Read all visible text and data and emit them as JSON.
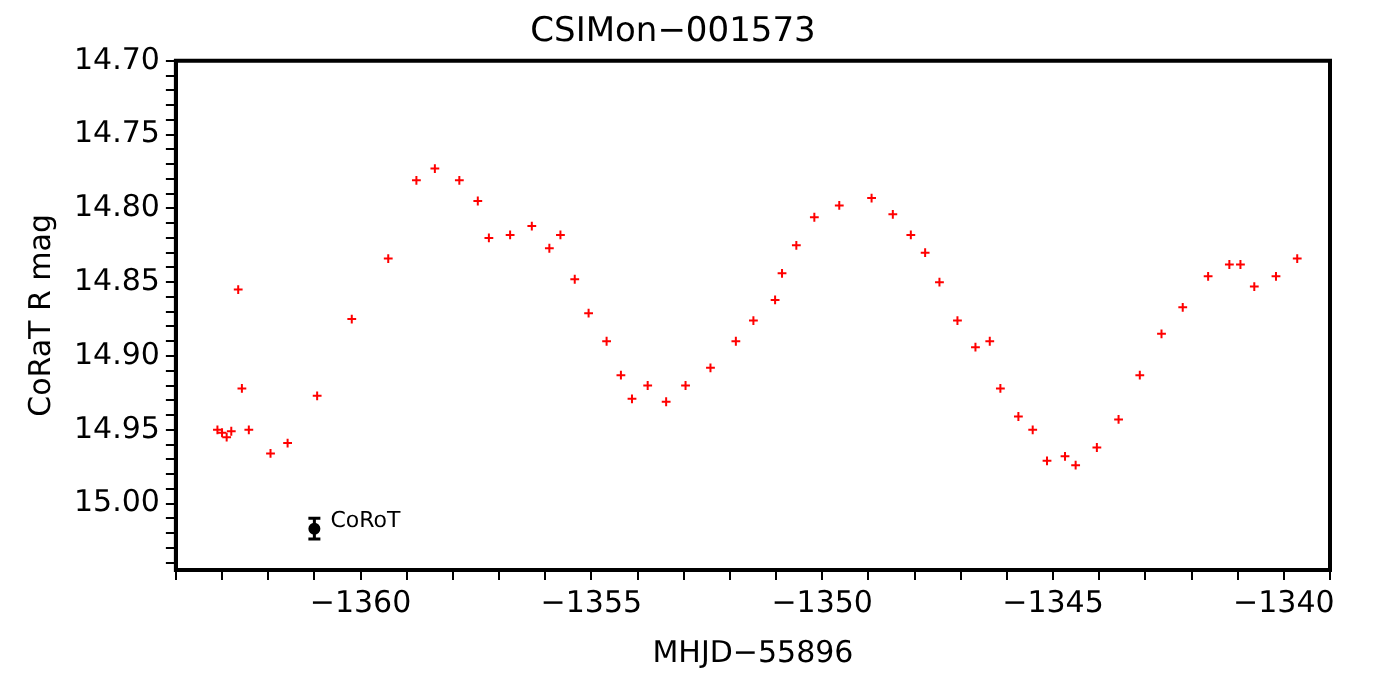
{
  "chart_data": {
    "type": "scatter",
    "title": "CSIMon−001573",
    "xlabel": "MHJD−55896",
    "ylabel": "CoRaT R mag",
    "grid": false,
    "legend": false,
    "marker": "cross",
    "xlim": [
      -1364,
      -1339
    ],
    "ylim": [
      15.045,
      14.7
    ],
    "xticks": [
      {
        "value": -1364,
        "label": null
      },
      {
        "value": -1363,
        "label": null
      },
      {
        "value": -1362,
        "label": null
      },
      {
        "value": -1361,
        "label": null
      },
      {
        "value": -1360,
        "label": "−1360"
      },
      {
        "value": -1359,
        "label": null
      },
      {
        "value": -1358,
        "label": null
      },
      {
        "value": -1357,
        "label": null
      },
      {
        "value": -1356,
        "label": null
      },
      {
        "value": -1355,
        "label": "−1355"
      },
      {
        "value": -1354,
        "label": null
      },
      {
        "value": -1353,
        "label": null
      },
      {
        "value": -1352,
        "label": null
      },
      {
        "value": -1351,
        "label": null
      },
      {
        "value": -1350,
        "label": "−1350"
      },
      {
        "value": -1349,
        "label": null
      },
      {
        "value": -1348,
        "label": null
      },
      {
        "value": -1347,
        "label": null
      },
      {
        "value": -1346,
        "label": null
      },
      {
        "value": -1345,
        "label": "−1345"
      },
      {
        "value": -1344,
        "label": null
      },
      {
        "value": -1343,
        "label": null
      },
      {
        "value": -1342,
        "label": null
      },
      {
        "value": -1341,
        "label": null
      },
      {
        "value": -1340,
        "label": "−1340"
      },
      {
        "value": -1339,
        "label": null
      }
    ],
    "yticks": [
      {
        "value": 14.7,
        "label": "14.70"
      },
      {
        "value": 14.71,
        "label": null
      },
      {
        "value": 14.72,
        "label": null
      },
      {
        "value": 14.73,
        "label": null
      },
      {
        "value": 14.74,
        "label": null
      },
      {
        "value": 14.75,
        "label": "14.75"
      },
      {
        "value": 14.76,
        "label": null
      },
      {
        "value": 14.77,
        "label": null
      },
      {
        "value": 14.78,
        "label": null
      },
      {
        "value": 14.79,
        "label": null
      },
      {
        "value": 14.8,
        "label": "14.80"
      },
      {
        "value": 14.81,
        "label": null
      },
      {
        "value": 14.82,
        "label": null
      },
      {
        "value": 14.83,
        "label": null
      },
      {
        "value": 14.84,
        "label": null
      },
      {
        "value": 14.85,
        "label": "14.85"
      },
      {
        "value": 14.86,
        "label": null
      },
      {
        "value": 14.87,
        "label": null
      },
      {
        "value": 14.88,
        "label": null
      },
      {
        "value": 14.89,
        "label": null
      },
      {
        "value": 14.9,
        "label": "14.90"
      },
      {
        "value": 14.91,
        "label": null
      },
      {
        "value": 14.92,
        "label": null
      },
      {
        "value": 14.93,
        "label": null
      },
      {
        "value": 14.94,
        "label": null
      },
      {
        "value": 14.95,
        "label": "14.95"
      },
      {
        "value": 14.96,
        "label": null
      },
      {
        "value": 14.97,
        "label": null
      },
      {
        "value": 14.98,
        "label": null
      },
      {
        "value": 14.99,
        "label": null
      },
      {
        "value": 15.0,
        "label": "15.00"
      },
      {
        "value": 15.01,
        "label": null
      },
      {
        "value": 15.02,
        "label": null
      },
      {
        "value": 15.03,
        "label": null
      },
      {
        "value": 15.04,
        "label": null
      }
    ],
    "series": [
      {
        "color": "#ff0000",
        "x": [
          -1363.1,
          -1363.0,
          -1362.9,
          -1362.8,
          -1362.65,
          -1362.57,
          -1362.42,
          -1361.95,
          -1361.58,
          -1360.94,
          -1360.19,
          -1359.4,
          -1358.79,
          -1358.39,
          -1357.86,
          -1357.46,
          -1357.22,
          -1356.76,
          -1356.29,
          -1355.91,
          -1355.67,
          -1355.36,
          -1355.06,
          -1354.67,
          -1354.36,
          -1354.12,
          -1353.78,
          -1353.38,
          -1352.96,
          -1352.42,
          -1351.87,
          -1351.49,
          -1351.02,
          -1350.87,
          -1350.56,
          -1350.17,
          -1349.63,
          -1348.93,
          -1348.47,
          -1348.08,
          -1347.77,
          -1347.46,
          -1347.07,
          -1346.68,
          -1346.37,
          -1346.14,
          -1345.75,
          -1345.44,
          -1345.13,
          -1344.74,
          -1344.51,
          -1344.05,
          -1343.58,
          -1343.12,
          -1342.65,
          -1342.19,
          -1341.64,
          -1341.18,
          -1340.94,
          -1340.64,
          -1340.17,
          -1339.71
        ],
        "values": [
          14.95,
          14.952,
          14.955,
          14.951,
          14.855,
          14.922,
          14.95,
          14.966,
          14.959,
          14.927,
          14.875,
          14.834,
          14.781,
          14.773,
          14.781,
          14.795,
          14.82,
          14.818,
          14.812,
          14.827,
          14.818,
          14.848,
          14.871,
          14.89,
          14.913,
          14.929,
          14.92,
          14.931,
          14.92,
          14.908,
          14.89,
          14.876,
          14.862,
          14.844,
          14.825,
          14.806,
          14.798,
          14.793,
          14.804,
          14.818,
          14.83,
          14.85,
          14.876,
          14.894,
          14.89,
          14.922,
          14.941,
          14.95,
          14.971,
          14.968,
          14.974,
          14.962,
          14.943,
          14.913,
          14.885,
          14.867,
          14.846,
          14.838,
          14.838,
          14.853,
          14.846,
          14.834
        ]
      },
      {
        "name": "CoRoT",
        "color": "#000000",
        "marker": "circle",
        "x": [
          -1361.0
        ],
        "values": [
          15.017
        ],
        "errors": [
          0.007
        ]
      }
    ]
  }
}
